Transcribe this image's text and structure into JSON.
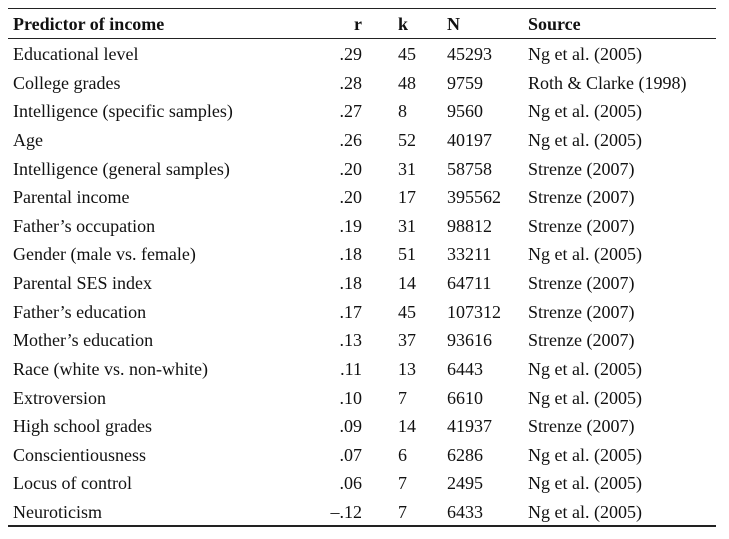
{
  "table": {
    "header": [
      "Predictor of income",
      "r",
      "k",
      "N",
      "Source"
    ],
    "rows": [
      [
        "Educational level",
        ".29",
        "45",
        "45293",
        "Ng et al. (2005)"
      ],
      [
        "College grades",
        ".28",
        "48",
        "9759",
        "Roth & Clarke (1998)"
      ],
      [
        "Intelligence (specific samples)",
        ".27",
        "8",
        "9560",
        "Ng et al. (2005)"
      ],
      [
        "Age",
        ".26",
        "52",
        "40197",
        "Ng et al. (2005)"
      ],
      [
        "Intelligence (general samples)",
        ".20",
        "31",
        "58758",
        "Strenze (2007)"
      ],
      [
        "Parental income",
        ".20",
        "17",
        "395562",
        "Strenze (2007)"
      ],
      [
        "Father’s occupation",
        ".19",
        "31",
        "98812",
        "Strenze (2007)"
      ],
      [
        "Gender (male vs. female)",
        ".18",
        "51",
        "33211",
        "Ng et al. (2005)"
      ],
      [
        "Parental SES index",
        ".18",
        "14",
        "64711",
        "Strenze (2007)"
      ],
      [
        "Father’s education",
        ".17",
        "45",
        "107312",
        "Strenze (2007)"
      ],
      [
        "Mother’s education",
        ".13",
        "37",
        "93616",
        "Strenze (2007)"
      ],
      [
        "Race (white vs. non-white)",
        ".11",
        "13",
        "6443",
        "Ng et al. (2005)"
      ],
      [
        "Extroversion",
        ".10",
        "7",
        "6610",
        "Ng et al. (2005)"
      ],
      [
        "High school grades",
        ".09",
        "14",
        "41937",
        "Strenze (2007)"
      ],
      [
        "Conscientiousness",
        ".07",
        "6",
        "6286",
        "Ng et al. (2005)"
      ],
      [
        "Locus of control",
        ".06",
        "7",
        "2495",
        "Ng et al. (2005)"
      ],
      [
        "Neuroticism",
        "–.12",
        "7",
        "6433",
        "Ng et al. (2005)"
      ]
    ]
  }
}
